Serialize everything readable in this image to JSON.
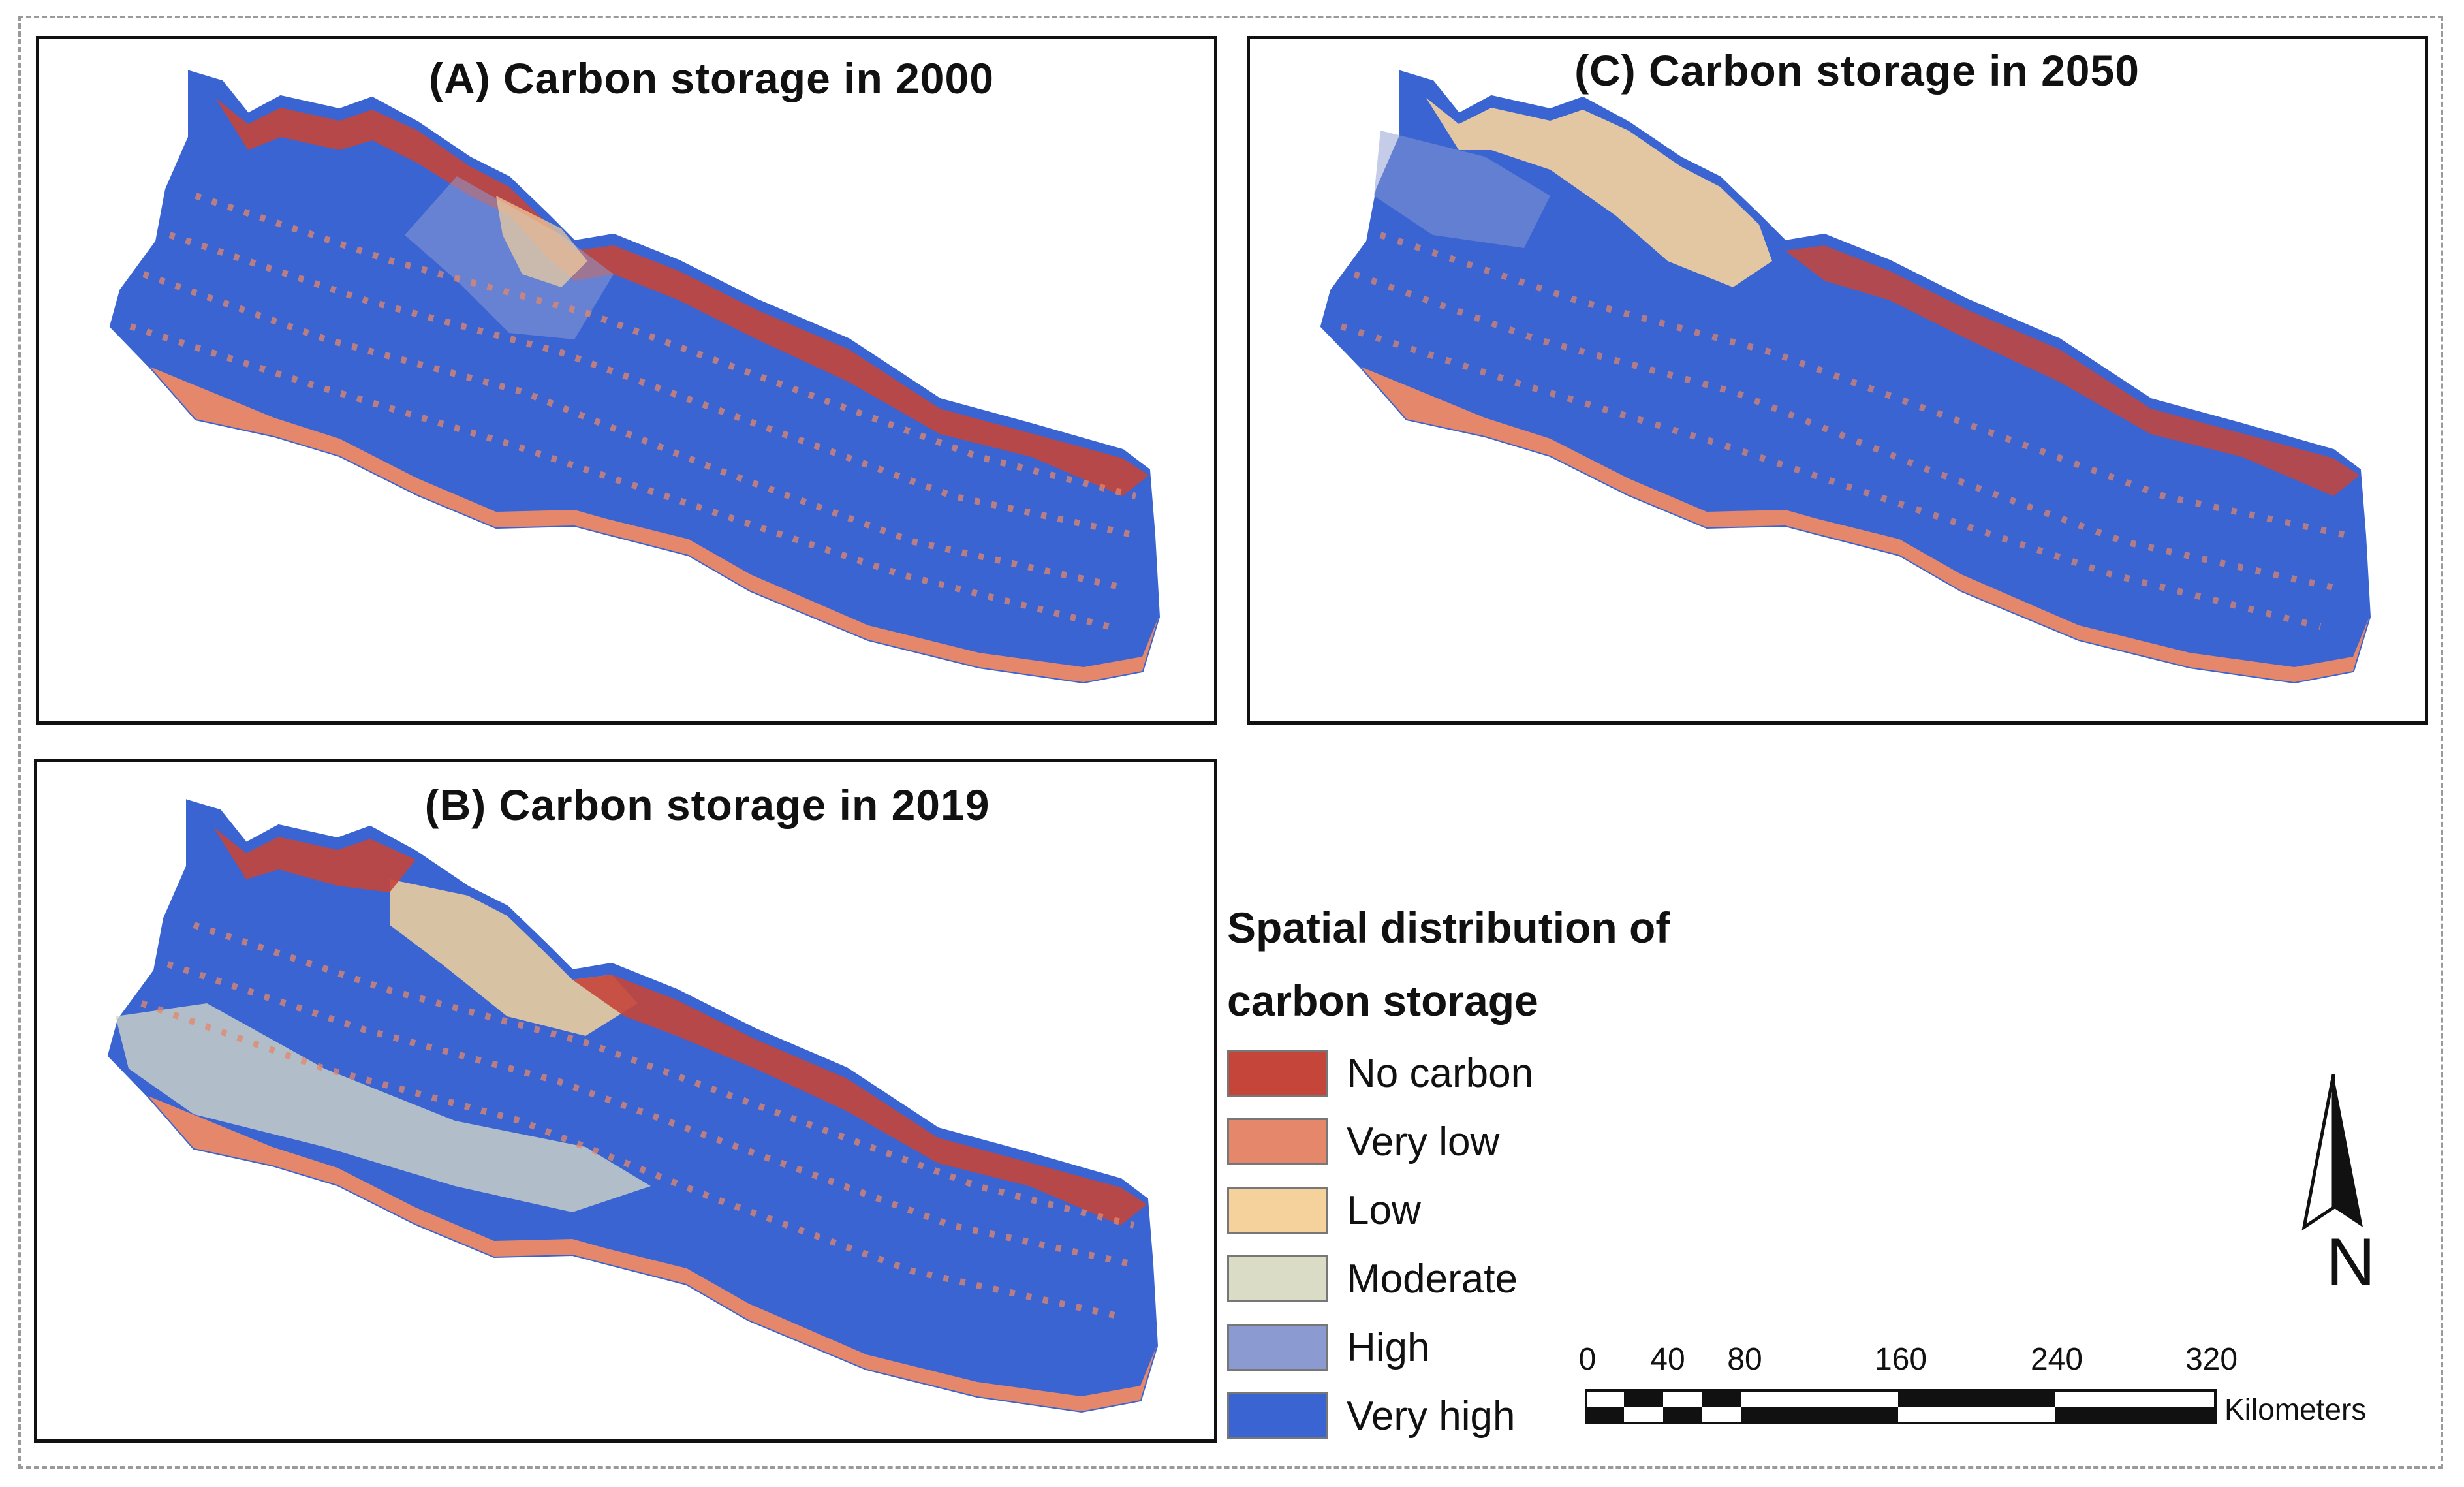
{
  "panels": {
    "a": {
      "title": "(A) Carbon storage in 2000"
    },
    "b": {
      "title": "(B) Carbon storage in 2019"
    },
    "c": {
      "title": "(C) Carbon storage in 2050"
    }
  },
  "legend": {
    "title_line1": "Spatial distribution of",
    "title_line2": "carbon storage",
    "items": [
      {
        "label": "No carbon",
        "color": "#c5453a"
      },
      {
        "label": "Very low",
        "color": "#e4876a"
      },
      {
        "label": "Low",
        "color": "#f5d29c"
      },
      {
        "label": "Moderate",
        "color": "#dadcc6"
      },
      {
        "label": "High",
        "color": "#8c9ad2"
      },
      {
        "label": "Very high",
        "color": "#3a64d2"
      }
    ]
  },
  "scale_bar": {
    "ticks": [
      "0",
      "40",
      "80",
      "160",
      "240",
      "320"
    ],
    "unit": "Kilometers"
  },
  "north_arrow": {
    "letter": "N"
  }
}
